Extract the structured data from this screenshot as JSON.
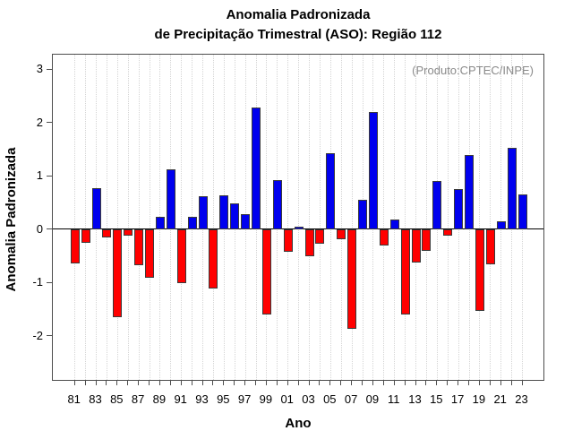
{
  "title": {
    "line1": "Anomalia Padronizada",
    "line2": "de Precipitação Trimestral (ASO): Região 112"
  },
  "annotation": "(Produto:CPTEC/INPE)",
  "axes": {
    "y_label": "Anomalia Padronizada",
    "x_label": "Ano",
    "y_ticks": [
      3,
      2,
      1,
      0,
      -1,
      -2
    ],
    "x_tick_labels": [
      "81",
      "83",
      "85",
      "87",
      "89",
      "91",
      "93",
      "95",
      "97",
      "99",
      "01",
      "03",
      "05",
      "07",
      "09",
      "11",
      "13",
      "15",
      "17",
      "19",
      "21",
      "23"
    ]
  },
  "colors": {
    "positive_bar": "#0000ee",
    "negative_bar": "#ff0000",
    "bar_border": "#3a3a3a",
    "annotation_text": "#8a8a8a",
    "gridline": "#d4d4d4"
  },
  "chart_data": {
    "type": "bar",
    "title": "Anomalia Padronizada de Precipitação Trimestral (ASO): Região 112",
    "xlabel": "Ano",
    "ylabel": "Anomalia Padronizada",
    "ylim": [
      -2.9,
      3.28
    ],
    "grid": "vertical dotted line per year",
    "legend_position": "none",
    "annotation": "(Produto:CPTEC/INPE)",
    "categories": [
      "81",
      "82",
      "83",
      "84",
      "85",
      "86",
      "87",
      "88",
      "89",
      "90",
      "91",
      "92",
      "93",
      "94",
      "95",
      "96",
      "97",
      "98",
      "99",
      "00",
      "01",
      "02",
      "03",
      "04",
      "05",
      "06",
      "07",
      "08",
      "09",
      "10",
      "11",
      "12",
      "13",
      "14",
      "15",
      "16",
      "17",
      "18",
      "19",
      "20",
      "21",
      "22",
      "23"
    ],
    "values": [
      -0.64,
      -0.25,
      0.78,
      -0.15,
      -1.64,
      -0.11,
      -0.68,
      -0.9,
      0.23,
      1.12,
      -1.0,
      0.23,
      0.62,
      -1.11,
      0.64,
      0.49,
      0.29,
      2.28,
      -1.59,
      0.93,
      -0.42,
      0.05,
      -0.51,
      -0.27,
      1.43,
      -0.19,
      -1.86,
      0.55,
      2.21,
      -0.3,
      0.18,
      -1.59,
      -0.62,
      -0.41,
      0.9,
      -0.11,
      0.75,
      1.4,
      -1.53,
      -0.66,
      0.15,
      1.53,
      0.66
    ],
    "positive_color": "#0000ee",
    "negative_color": "#ff0000"
  }
}
